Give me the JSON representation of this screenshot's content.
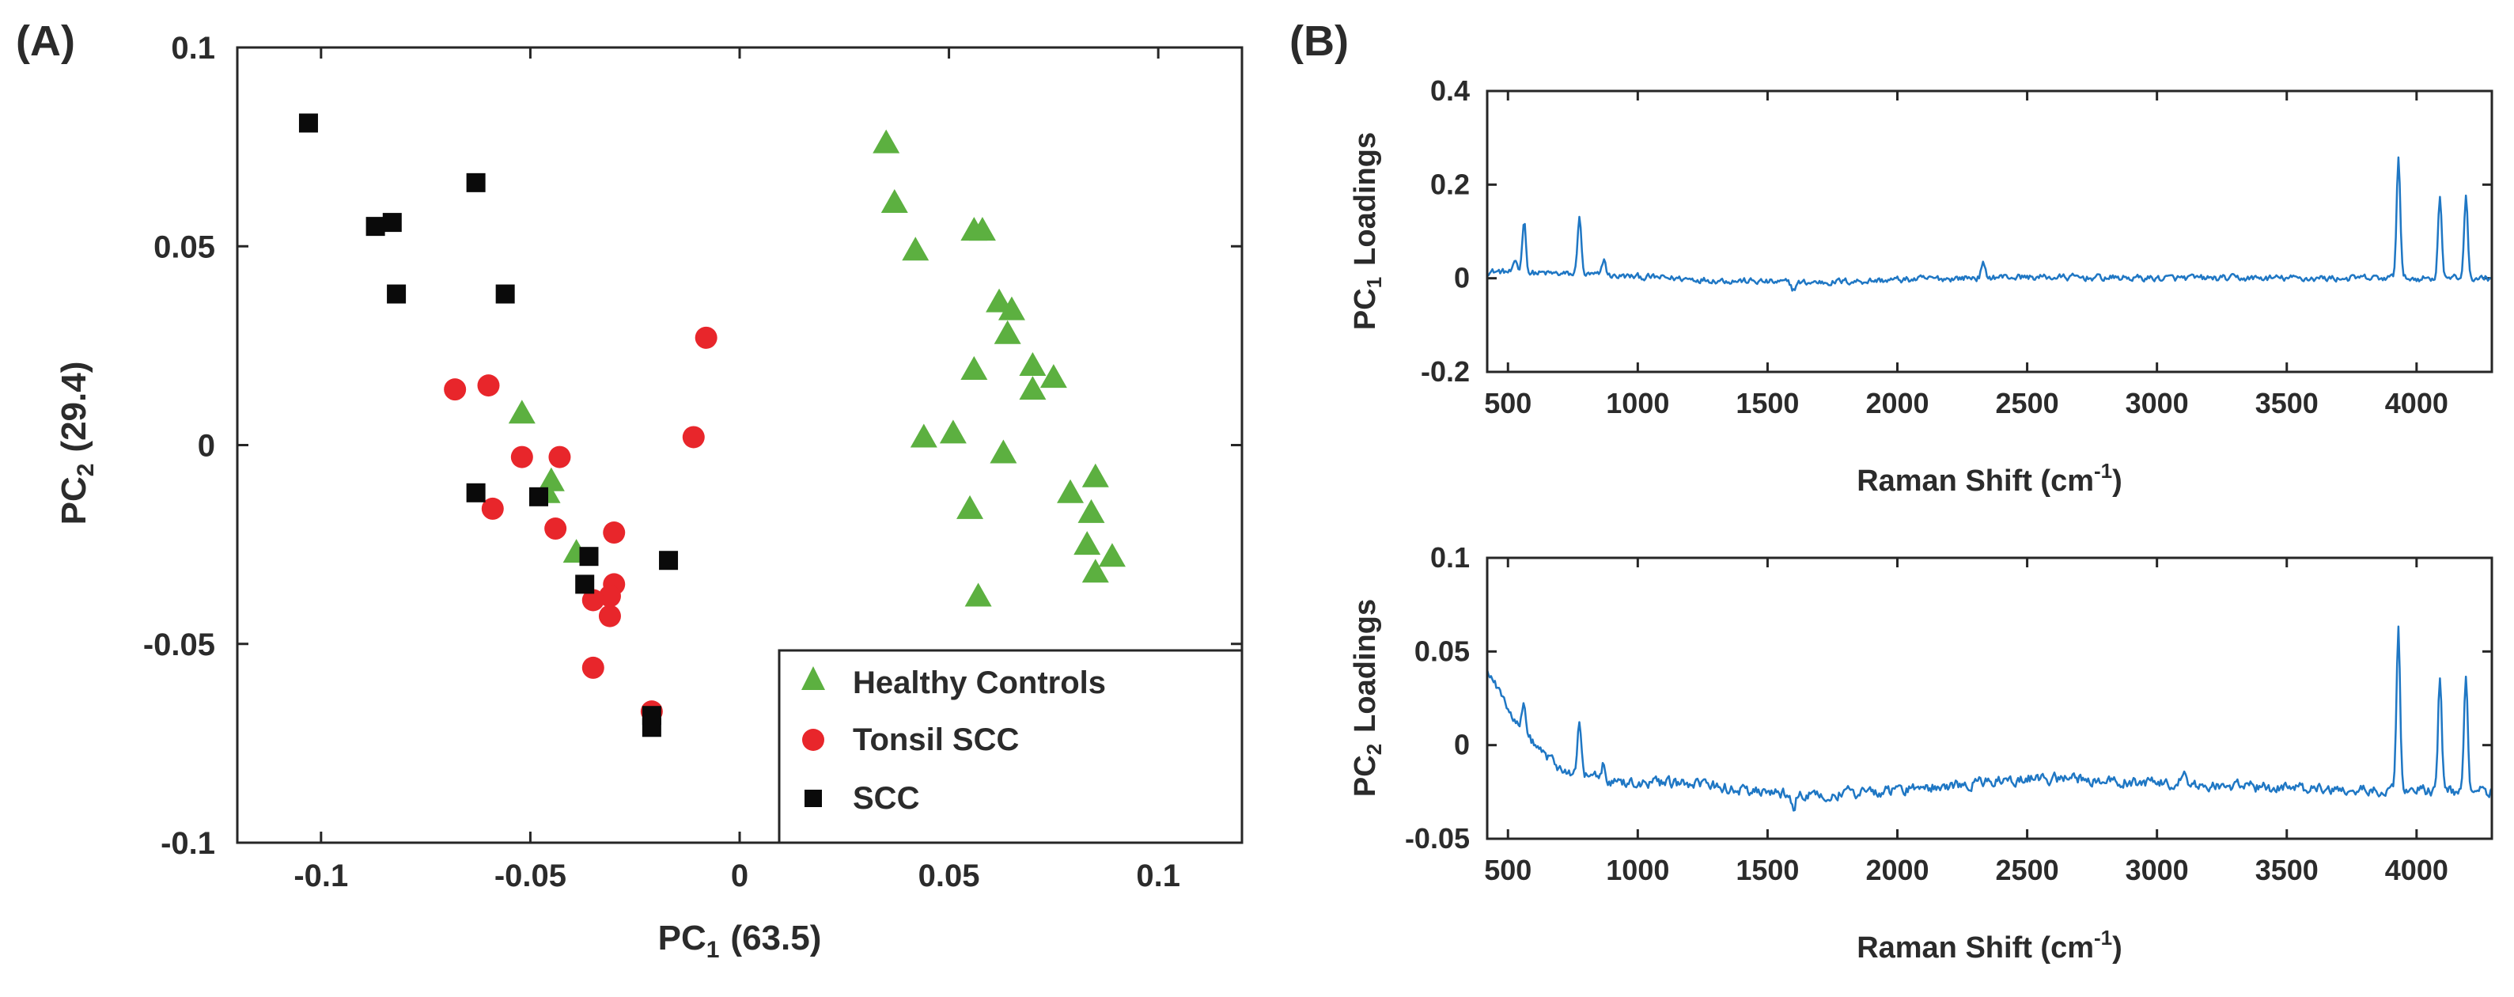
{
  "panels": {
    "a_label": "(A)",
    "b_label": "(B)"
  },
  "chart_data": [
    {
      "type": "scatter",
      "panel": "(A)",
      "xlabel_main": "PC",
      "xlabel_sub": "1",
      "xlabel_tail": "(63.5)",
      "ylabel_main": "PC",
      "ylabel_sub": "2",
      "ylabel_tail": "(29.4)",
      "xlim": [
        -0.12,
        0.12
      ],
      "ylim": [
        -0.1,
        0.1
      ],
      "xticks": [
        -0.1,
        -0.05,
        0,
        0.05,
        0.1
      ],
      "xtick_labels": [
        "-0.1",
        "-0.05",
        "0",
        "0.05",
        "0.1"
      ],
      "yticks": [
        -0.1,
        -0.05,
        0,
        0.05,
        0.1
      ],
      "ytick_labels": [
        "-0.1",
        "-0.05",
        "0",
        "0.05",
        "0.1"
      ],
      "legend_position": "bottom-right",
      "series": [
        {
          "name": "Healthy Controls",
          "marker": "triangle",
          "color": "#5cb040",
          "points": [
            [
              0.035,
              0.076
            ],
            [
              0.037,
              0.061
            ],
            [
              0.042,
              0.049
            ],
            [
              0.056,
              0.054
            ],
            [
              0.058,
              0.054
            ],
            [
              0.062,
              0.036
            ],
            [
              0.065,
              0.034
            ],
            [
              0.064,
              0.028
            ],
            [
              0.07,
              0.02
            ],
            [
              0.075,
              0.017
            ],
            [
              0.07,
              0.014
            ],
            [
              0.056,
              0.019
            ],
            [
              0.044,
              0.002
            ],
            [
              0.051,
              0.003
            ],
            [
              0.063,
              -0.002
            ],
            [
              0.079,
              -0.012
            ],
            [
              0.085,
              -0.008
            ],
            [
              0.084,
              -0.017
            ],
            [
              0.083,
              -0.025
            ],
            [
              0.089,
              -0.028
            ],
            [
              0.085,
              -0.032
            ],
            [
              0.055,
              -0.016
            ],
            [
              0.057,
              -0.038
            ],
            [
              -0.052,
              0.008
            ],
            [
              -0.045,
              -0.009
            ],
            [
              -0.046,
              -0.012
            ],
            [
              -0.039,
              -0.027
            ]
          ]
        },
        {
          "name": "Tonsil SCC",
          "color": "#e8262b",
          "marker": "circle",
          "points": [
            [
              -0.068,
              0.014
            ],
            [
              -0.06,
              0.015
            ],
            [
              -0.052,
              -0.003
            ],
            [
              -0.043,
              -0.003
            ],
            [
              -0.059,
              -0.016
            ],
            [
              -0.044,
              -0.021
            ],
            [
              -0.03,
              -0.022
            ],
            [
              -0.03,
              -0.035
            ],
            [
              -0.031,
              -0.038
            ],
            [
              -0.035,
              -0.039
            ],
            [
              -0.031,
              -0.043
            ],
            [
              -0.035,
              -0.056
            ],
            [
              -0.021,
              -0.067
            ],
            [
              -0.011,
              0.002
            ],
            [
              -0.008,
              0.027
            ]
          ]
        },
        {
          "name": "SCC",
          "color": "#0a0a0a",
          "marker": "square",
          "points": [
            [
              -0.103,
              0.081
            ],
            [
              -0.087,
              0.055
            ],
            [
              -0.083,
              0.056
            ],
            [
              -0.082,
              0.038
            ],
            [
              -0.063,
              0.066
            ],
            [
              -0.056,
              0.038
            ],
            [
              -0.063,
              -0.012
            ],
            [
              -0.048,
              -0.013
            ],
            [
              -0.036,
              -0.028
            ],
            [
              -0.037,
              -0.035
            ],
            [
              -0.017,
              -0.029
            ],
            [
              -0.021,
              -0.068
            ],
            [
              -0.021,
              -0.071
            ]
          ]
        }
      ]
    },
    {
      "type": "line",
      "panel": "(B) top",
      "xlabel": "Raman Shift (cm",
      "xlabel_sup": "-1",
      "xlabel_tail": ")",
      "ylabel_main": "PC",
      "ylabel_sub": "1",
      "ylabel_tail": "Loadings",
      "xlim": [
        420,
        4290
      ],
      "ylim": [
        -0.2,
        0.4
      ],
      "xticks": [
        500,
        1000,
        1500,
        2000,
        2500,
        3000,
        3500,
        4000
      ],
      "xtick_labels": [
        "500",
        "1000",
        "1500",
        "2000",
        "2500",
        "3000",
        "3500",
        "4000"
      ],
      "yticks": [
        -0.2,
        0,
        0.2,
        0.4
      ],
      "ytick_labels": [
        "-0.2",
        "0",
        "0.2",
        "0.4"
      ],
      "color": "#1f77c4",
      "baseline": [
        [
          420,
          0.015
        ],
        [
          1000,
          0.003
        ],
        [
          1600,
          -0.01
        ],
        [
          2400,
          0.003
        ],
        [
          3000,
          0.0
        ],
        [
          4290,
          0.0
        ]
      ],
      "noise": 0.006,
      "peaks": [
        [
          530,
          0.035
        ],
        [
          562,
          0.125
        ],
        [
          775,
          0.135
        ],
        [
          870,
          0.04
        ],
        [
          1600,
          -0.025
        ],
        [
          2330,
          0.03
        ],
        [
          3930,
          0.26
        ],
        [
          4090,
          0.18
        ],
        [
          4190,
          0.175
        ]
      ]
    },
    {
      "type": "line",
      "panel": "(B) bottom",
      "xlabel": "Raman Shift (cm",
      "xlabel_sup": "-1",
      "xlabel_tail": ")",
      "ylabel_main": "PC",
      "ylabel_sub": "2",
      "ylabel_tail": "Loadings",
      "xlim": [
        420,
        4290
      ],
      "ylim": [
        -0.05,
        0.1
      ],
      "xticks": [
        500,
        1000,
        1500,
        2000,
        2500,
        3000,
        3500,
        4000
      ],
      "xtick_labels": [
        "500",
        "1000",
        "1500",
        "2000",
        "2500",
        "3000",
        "3500",
        "4000"
      ],
      "yticks": [
        -0.05,
        0,
        0.05,
        0.1
      ],
      "ytick_labels": [
        "-0.05",
        "0",
        "0.05",
        "0.1"
      ],
      "color": "#1f77c4",
      "baseline": [
        [
          420,
          0.04
        ],
        [
          500,
          0.02
        ],
        [
          600,
          0.0
        ],
        [
          700,
          -0.013
        ],
        [
          900,
          -0.019
        ],
        [
          1300,
          -0.022
        ],
        [
          1600,
          -0.027
        ],
        [
          2000,
          -0.024
        ],
        [
          2300,
          -0.02
        ],
        [
          2500,
          -0.018
        ],
        [
          2700,
          -0.018
        ],
        [
          3000,
          -0.02
        ],
        [
          3500,
          -0.023
        ],
        [
          4290,
          -0.025
        ]
      ],
      "noise": 0.0025,
      "peaks": [
        [
          562,
          0.025
        ],
        [
          775,
          0.012
        ],
        [
          870,
          -0.01
        ],
        [
          1600,
          -0.035
        ],
        [
          3100,
          -0.013
        ],
        [
          3930,
          0.061
        ],
        [
          4090,
          0.036
        ],
        [
          4190,
          0.035
        ]
      ]
    }
  ]
}
